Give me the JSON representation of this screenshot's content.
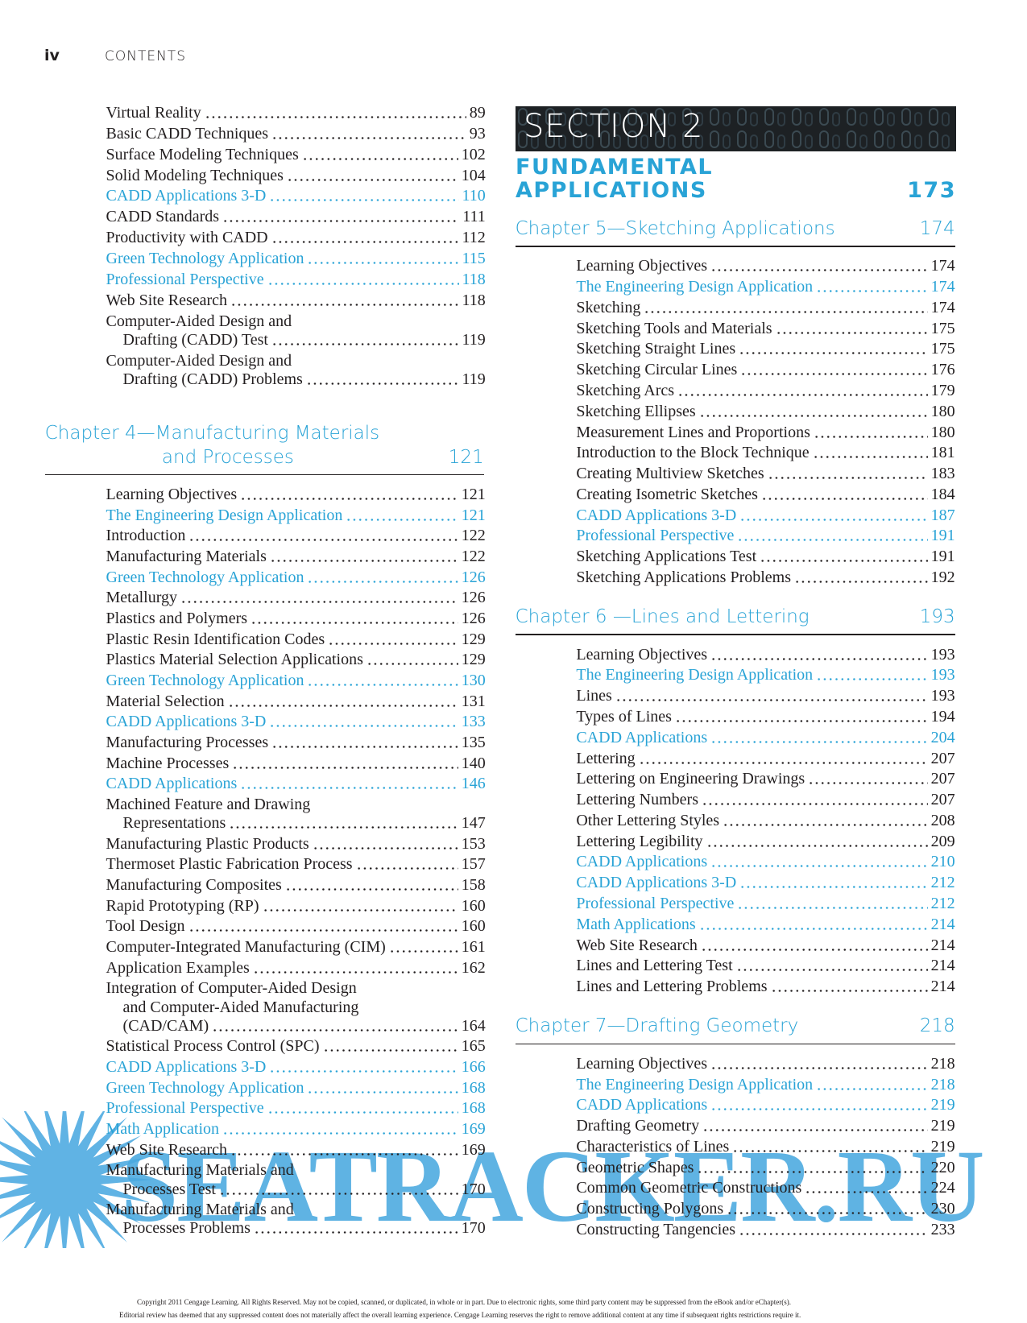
{
  "header": {
    "folio": "iv",
    "running_head": "CONTENTS"
  },
  "continued_entries": [
    {
      "title": "Virtual Reality",
      "page": 89
    },
    {
      "title": "Basic CADD Techniques",
      "page": 93
    },
    {
      "title": "Surface Modeling Techniques",
      "page": 102
    },
    {
      "title": "Solid Modeling Techniques",
      "page": 104
    },
    {
      "title": "CADD Applications 3-D",
      "page": 110,
      "highlight": true
    },
    {
      "title": "CADD Standards",
      "page": 111
    },
    {
      "title": "Productivity with CADD",
      "page": 112
    },
    {
      "title": "Green Technology Application",
      "page": 115,
      "highlight": true
    },
    {
      "title": "Professional Perspective",
      "page": 118,
      "highlight": true
    },
    {
      "title": "Web Site Research",
      "page": 118
    },
    {
      "title": "Computer-Aided Design and",
      "more": [
        "Drafting (CADD) Test"
      ],
      "page": 119
    },
    {
      "title": "Computer-Aided Design and",
      "more": [
        "Drafting (CADD) Problems"
      ],
      "page": 119
    }
  ],
  "section": {
    "banner": "SECTION 2",
    "title_lines": [
      "FUNDAMENTAL",
      "APPLICATIONS"
    ],
    "page": 173
  },
  "chapters": [
    {
      "title_lines": [
        "Chapter 4—Manufacturing Materials",
        "and Processes"
      ],
      "page": 121,
      "entries": [
        {
          "title": "Learning Objectives",
          "page": 121
        },
        {
          "title": "The Engineering Design Application",
          "page": 121,
          "highlight": true
        },
        {
          "title": "Introduction",
          "page": 122
        },
        {
          "title": "Manufacturing Materials",
          "page": 122
        },
        {
          "title": "Green Technology Application",
          "page": 126,
          "highlight": true
        },
        {
          "title": "Metallurgy",
          "page": 126
        },
        {
          "title": "Plastics and Polymers",
          "page": 126
        },
        {
          "title": "Plastic Resin Identification Codes",
          "page": 129
        },
        {
          "title": "Plastics Material Selection Applications",
          "page": 129
        },
        {
          "title": "Green Technology Application",
          "page": 130,
          "highlight": true
        },
        {
          "title": "Material Selection",
          "page": 131
        },
        {
          "title": "CADD Applications 3-D",
          "page": 133,
          "highlight": true
        },
        {
          "title": "Manufacturing Processes",
          "page": 135
        },
        {
          "title": "Machine Processes",
          "page": 140
        },
        {
          "title": "CADD Applications",
          "page": 146,
          "highlight": true
        },
        {
          "title": "Machined Feature and Drawing",
          "more": [
            "Representations"
          ],
          "page": 147
        },
        {
          "title": "Manufacturing Plastic Products",
          "page": 153
        },
        {
          "title": "Thermoset Plastic Fabrication Process",
          "page": 157
        },
        {
          "title": "Manufacturing Composites",
          "page": 158
        },
        {
          "title": "Rapid Prototyping (RP)",
          "page": 160
        },
        {
          "title": "Tool Design",
          "page": 160
        },
        {
          "title": "Computer-Integrated Manufacturing (CIM)",
          "page": 161
        },
        {
          "title": "Application Examples",
          "page": 162
        },
        {
          "title": "Integration of Computer-Aided Design",
          "more": [
            "and Computer-Aided Manufacturing",
            "(CAD/CAM)"
          ],
          "page": 164
        },
        {
          "title": "Statistical Process Control (SPC)",
          "page": 165
        },
        {
          "title": "CADD Applications 3-D",
          "page": 166,
          "highlight": true
        },
        {
          "title": "Green Technology Application",
          "page": 168,
          "highlight": true
        },
        {
          "title": "Professional Perspective",
          "page": 168,
          "highlight": true
        },
        {
          "title": "Math Application",
          "page": 169,
          "highlight": true
        },
        {
          "title": "Web Site Research",
          "page": 169
        },
        {
          "title": "Manufacturing Materials and",
          "more": [
            "Processes Test"
          ],
          "page": 170
        },
        {
          "title": "Manufacturing Materials and",
          "more": [
            "Processes Problems"
          ],
          "page": 170
        }
      ]
    },
    {
      "title_lines": [
        "Chapter 5—Sketching Applications"
      ],
      "page": 174,
      "entries": [
        {
          "title": "Learning Objectives",
          "page": 174
        },
        {
          "title": "The Engineering Design Application",
          "page": 174,
          "highlight": true
        },
        {
          "title": "Sketching",
          "page": 174
        },
        {
          "title": "Sketching Tools and Materials",
          "page": 175
        },
        {
          "title": "Sketching Straight Lines",
          "page": 175
        },
        {
          "title": "Sketching Circular Lines",
          "page": 176
        },
        {
          "title": "Sketching Arcs",
          "page": 179
        },
        {
          "title": "Sketching Ellipses",
          "page": 180
        },
        {
          "title": "Measurement Lines and Proportions",
          "page": 180
        },
        {
          "title": "Introduction to the Block Technique",
          "page": 181
        },
        {
          "title": "Creating Multiview Sketches",
          "page": 183
        },
        {
          "title": "Creating Isometric Sketches",
          "page": 184
        },
        {
          "title": "CADD Applications 3-D",
          "page": 187,
          "highlight": true
        },
        {
          "title": "Professional Perspective",
          "page": 191,
          "highlight": true
        },
        {
          "title": "Sketching Applications Test",
          "page": 191
        },
        {
          "title": "Sketching Applications Problems",
          "page": 192
        }
      ]
    },
    {
      "title_lines": [
        "Chapter 6 —Lines and Lettering"
      ],
      "page": 193,
      "entries": [
        {
          "title": "Learning Objectives",
          "page": 193
        },
        {
          "title": "The Engineering Design Application",
          "page": 193,
          "highlight": true
        },
        {
          "title": "Lines",
          "page": 193
        },
        {
          "title": "Types of Lines",
          "page": 194
        },
        {
          "title": "CADD Applications",
          "page": 204,
          "highlight": true
        },
        {
          "title": "Lettering",
          "page": 207
        },
        {
          "title": "Lettering on Engineering Drawings",
          "page": 207
        },
        {
          "title": "Lettering Numbers",
          "page": 207
        },
        {
          "title": "Other Lettering Styles",
          "page": 208
        },
        {
          "title": "Lettering Legibility",
          "page": 209
        },
        {
          "title": "CADD Applications",
          "page": 210,
          "highlight": true
        },
        {
          "title": "CADD Applications 3-D",
          "page": 212,
          "highlight": true
        },
        {
          "title": "Professional Perspective",
          "page": 212,
          "highlight": true
        },
        {
          "title": "Math Applications",
          "page": 214,
          "highlight": true
        },
        {
          "title": "Web Site Research",
          "page": 214
        },
        {
          "title": "Lines and Lettering Test",
          "page": 214
        },
        {
          "title": "Lines and Lettering Problems",
          "page": 214
        }
      ]
    },
    {
      "title_lines": [
        "Chapter 7—Drafting Geometry"
      ],
      "page": 218,
      "entries": [
        {
          "title": "Learning Objectives",
          "page": 218
        },
        {
          "title": "The Engineering Design Application",
          "page": 218,
          "highlight": true
        },
        {
          "title": "CADD Applications",
          "page": 219,
          "highlight": true
        },
        {
          "title": "Drafting Geometry",
          "page": 219
        },
        {
          "title": "Characteristics of Lines",
          "page": 219
        },
        {
          "title": "Geometric Shapes",
          "page": 220
        },
        {
          "title": "Common Geometric Constructions",
          "page": 224
        },
        {
          "title": "Constructing Polygons",
          "page": 230
        },
        {
          "title": "Constructing Tangencies",
          "page": 233
        }
      ]
    }
  ],
  "watermark": "SEATRACKER.RU",
  "footer": [
    "Copyright 2011 Cengage Learning. All Rights Reserved. May not be copied, scanned, or duplicated, in whole or in part. Due to electronic rights, some third party content may be suppressed from the eBook and/or eChapter(s).",
    "Editorial review has deemed that any suppressed content does not materially affect the overall learning experience. Cengage Learning reserves the right to remove additional content at any time if subsequent rights restrictions require it."
  ]
}
